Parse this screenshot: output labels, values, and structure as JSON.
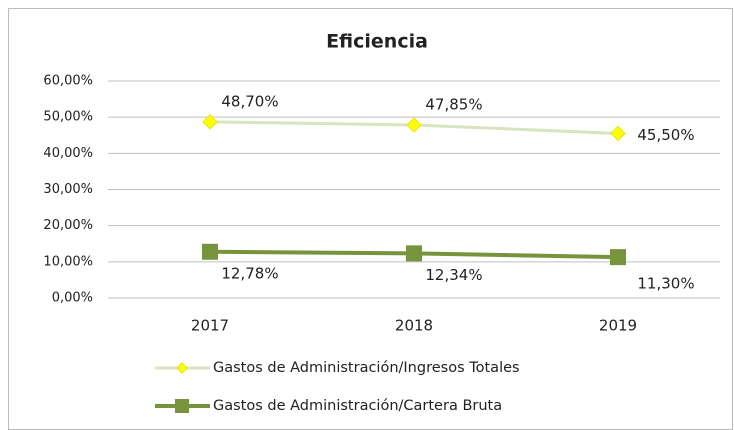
{
  "chart_data": {
    "type": "line",
    "title": "Eficiencia",
    "categories": [
      "2017",
      "2018",
      "2019"
    ],
    "series": [
      {
        "name": "Gastos de Administración/Ingresos Totales",
        "color": "#d7e4bd",
        "marker_color": "#ffff00",
        "marker": "diamond",
        "values": [
          48.7,
          47.85,
          45.5
        ],
        "value_labels": [
          "48,70%",
          "47,85%",
          "45,50%"
        ]
      },
      {
        "name": "Gastos de Administración/Cartera Bruta",
        "color": "#77933c",
        "marker_color": "#77933c",
        "marker": "square",
        "values": [
          12.78,
          12.34,
          11.3
        ],
        "value_labels": [
          "12,78%",
          "12,34%",
          "11,30%"
        ]
      }
    ],
    "ylim": [
      0,
      60
    ],
    "yticks": [
      {
        "value": 0,
        "label": "0,00%"
      },
      {
        "value": 10,
        "label": "10,00%"
      },
      {
        "value": 20,
        "label": "20,00%"
      },
      {
        "value": 30,
        "label": "30,00%"
      },
      {
        "value": 40,
        "label": "40,00%"
      },
      {
        "value": 50,
        "label": "50,00%"
      },
      {
        "value": 60,
        "label": "60,00%"
      }
    ],
    "grid": true,
    "legend": "bottom"
  }
}
